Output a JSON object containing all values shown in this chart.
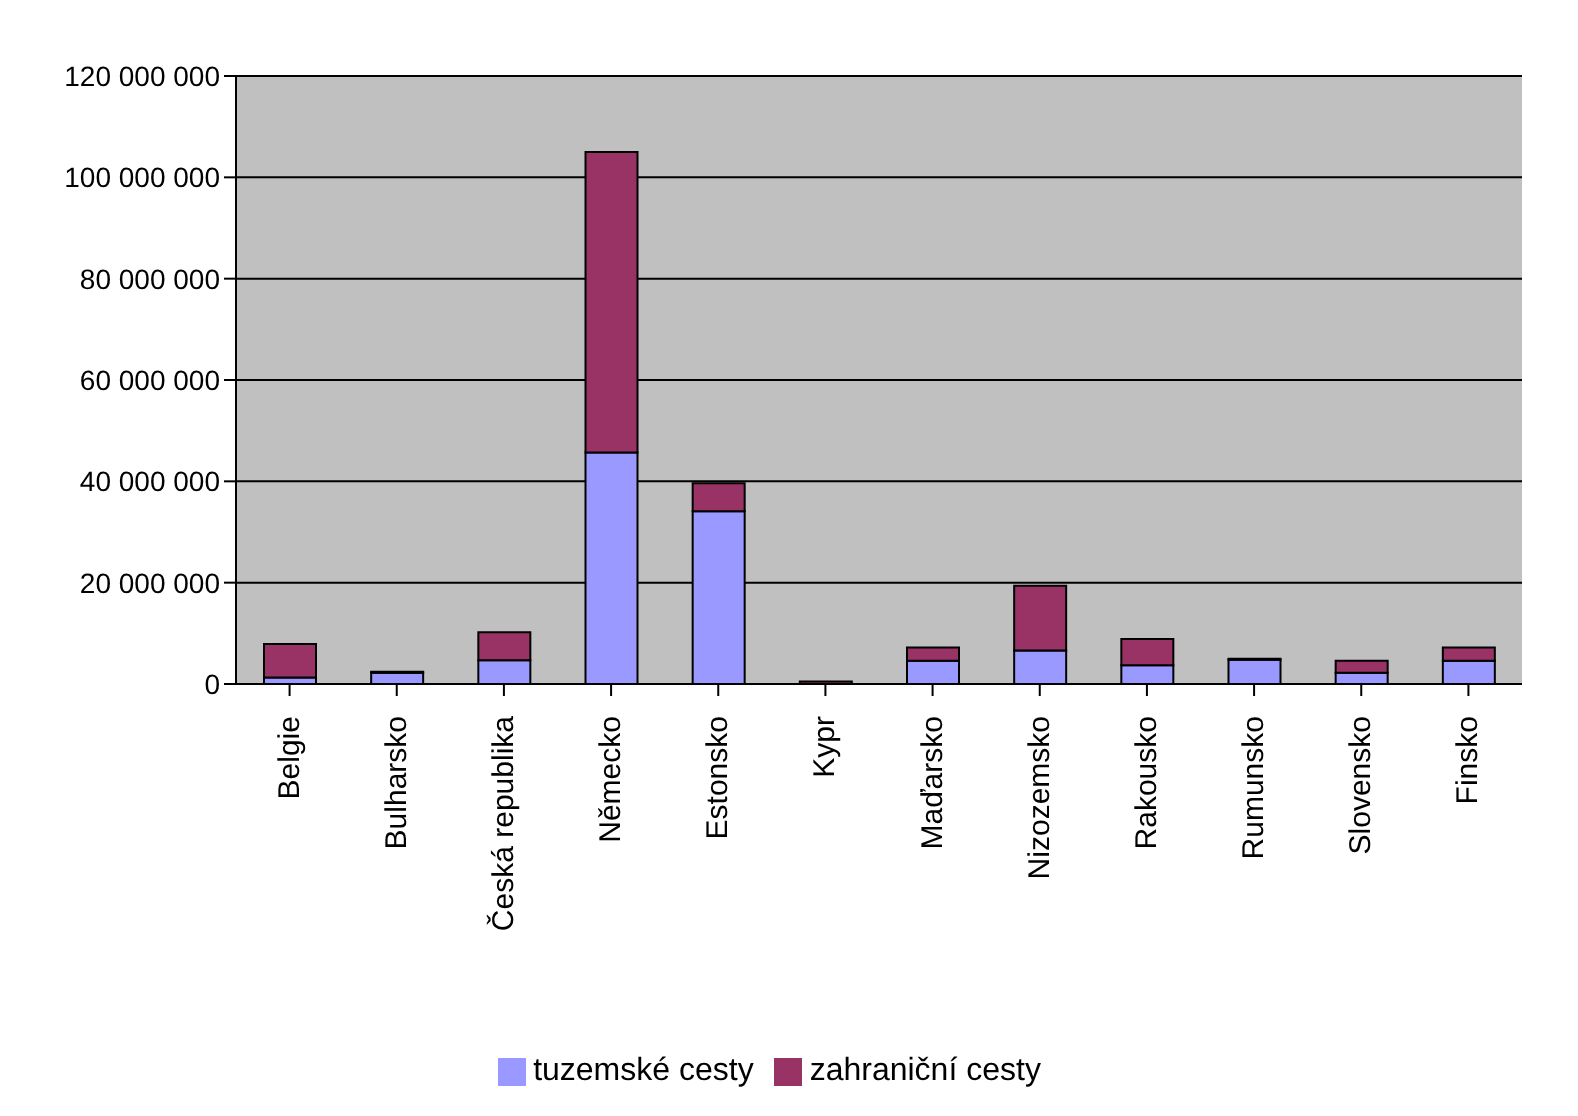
{
  "chart_data": {
    "type": "bar",
    "stacked": true,
    "categories": [
      "Belgie",
      "Bulharsko",
      "Česká republika",
      "Německo",
      "Estonsko",
      "Kypr",
      "Maďarsko",
      "Nizozemsko",
      "Rakousko",
      "Rumunsko",
      "Slovensko",
      "Finsko"
    ],
    "series": [
      {
        "name": "tuzemské cesty",
        "color": "#9999ff",
        "values": [
          1300000,
          2200000,
          4700000,
          45700000,
          34100000,
          null,
          4600000,
          6600000,
          3700000,
          4800000,
          2200000,
          4600000
        ]
      },
      {
        "name": "zahraniční cesty",
        "color": "#993366",
        "values": [
          6600000,
          200000,
          5500000,
          59300000,
          5500000,
          500000,
          2600000,
          12800000,
          5200000,
          200000,
          2400000,
          2600000
        ]
      }
    ],
    "ylim": [
      0,
      120000000
    ],
    "yticks": [
      {
        "value": 0,
        "label": "0"
      },
      {
        "value": 20000000,
        "label": "20 000 000"
      },
      {
        "value": 40000000,
        "label": "40 000 000"
      },
      {
        "value": 60000000,
        "label": "60 000 000"
      },
      {
        "value": 80000000,
        "label": "80 000 000"
      },
      {
        "value": 100000000,
        "label": "100 000 000"
      },
      {
        "value": 120000000,
        "label": "120 000 000"
      }
    ],
    "grid": "y",
    "legend": "bottom"
  }
}
